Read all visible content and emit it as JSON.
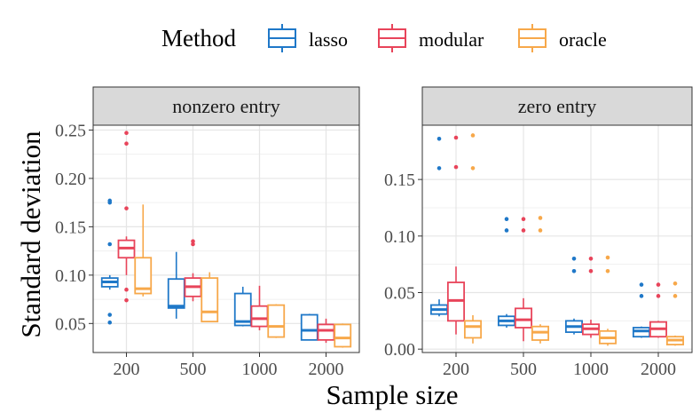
{
  "legend": {
    "title": "Method",
    "items": [
      {
        "label": "lasso",
        "color": "#1F78C8"
      },
      {
        "label": "modular",
        "color": "#E8445A"
      },
      {
        "label": "oracle",
        "color": "#F7A84A"
      }
    ]
  },
  "axes": {
    "xlabel": "Sample size",
    "ylabel": "Standard deviation"
  },
  "chart_data": [
    {
      "type": "box",
      "title": "nonzero entry",
      "categories": [
        "200",
        "500",
        "1000",
        "2000"
      ],
      "ylim": [
        0.02,
        0.255
      ],
      "yticks": [
        0.05,
        0.1,
        0.15,
        0.2,
        0.25
      ],
      "ytick_labels": [
        "0.05",
        "0.10",
        "0.15",
        "0.20",
        "0.25"
      ],
      "series": [
        {
          "name": "lasso",
          "boxes": [
            {
              "min": 0.085,
              "q1": 0.088,
              "median": 0.093,
              "q3": 0.097,
              "max": 0.1,
              "outliers": [
                0.177,
                0.175,
                0.132,
                0.059,
                0.051
              ]
            },
            {
              "min": 0.055,
              "q1": 0.066,
              "median": 0.068,
              "q3": 0.096,
              "max": 0.124,
              "outliers": []
            },
            {
              "min": 0.047,
              "q1": 0.048,
              "median": 0.052,
              "q3": 0.081,
              "max": 0.088,
              "outliers": []
            },
            {
              "min": 0.033,
              "q1": 0.033,
              "median": 0.043,
              "q3": 0.059,
              "max": 0.06,
              "outliers": []
            }
          ]
        },
        {
          "name": "modular",
          "boxes": [
            {
              "min": 0.1,
              "q1": 0.118,
              "median": 0.128,
              "q3": 0.136,
              "max": 0.14,
              "outliers": [
                0.247,
                0.236,
                0.169,
                0.085,
                0.074
              ]
            },
            {
              "min": 0.073,
              "q1": 0.078,
              "median": 0.088,
              "q3": 0.097,
              "max": 0.102,
              "outliers": [
                0.135,
                0.132
              ]
            },
            {
              "min": 0.043,
              "q1": 0.047,
              "median": 0.055,
              "q3": 0.068,
              "max": 0.089,
              "outliers": []
            },
            {
              "min": 0.03,
              "q1": 0.033,
              "median": 0.043,
              "q3": 0.049,
              "max": 0.055,
              "outliers": []
            }
          ]
        },
        {
          "name": "oracle",
          "boxes": [
            {
              "min": 0.078,
              "q1": 0.081,
              "median": 0.086,
              "q3": 0.118,
              "max": 0.173,
              "outliers": []
            },
            {
              "min": 0.052,
              "q1": 0.052,
              "median": 0.062,
              "q3": 0.097,
              "max": 0.103,
              "outliers": []
            },
            {
              "min": 0.035,
              "q1": 0.036,
              "median": 0.047,
              "q3": 0.069,
              "max": 0.07,
              "outliers": []
            },
            {
              "min": 0.025,
              "q1": 0.026,
              "median": 0.035,
              "q3": 0.049,
              "max": 0.05,
              "outliers": []
            }
          ]
        }
      ]
    },
    {
      "type": "box",
      "title": "zero entry",
      "categories": [
        "200",
        "500",
        "1000",
        "2000"
      ],
      "ylim": [
        -0.003,
        0.198
      ],
      "yticks": [
        0.0,
        0.05,
        0.1,
        0.15
      ],
      "ytick_labels": [
        "0.00",
        "0.05",
        "0.10",
        "0.15"
      ],
      "series": [
        {
          "name": "lasso",
          "boxes": [
            {
              "min": 0.029,
              "q1": 0.031,
              "median": 0.035,
              "q3": 0.039,
              "max": 0.044,
              "outliers": [
                0.186,
                0.16
              ]
            },
            {
              "min": 0.019,
              "q1": 0.021,
              "median": 0.025,
              "q3": 0.029,
              "max": 0.031,
              "outliers": [
                0.115,
                0.105
              ]
            },
            {
              "min": 0.013,
              "q1": 0.015,
              "median": 0.02,
              "q3": 0.025,
              "max": 0.027,
              "outliers": [
                0.08,
                0.069
              ]
            },
            {
              "min": 0.01,
              "q1": 0.011,
              "median": 0.016,
              "q3": 0.019,
              "max": 0.02,
              "outliers": [
                0.057,
                0.047
              ]
            }
          ]
        },
        {
          "name": "modular",
          "boxes": [
            {
              "min": 0.013,
              "q1": 0.025,
              "median": 0.043,
              "q3": 0.059,
              "max": 0.073,
              "outliers": [
                0.187,
                0.161
              ]
            },
            {
              "min": 0.007,
              "q1": 0.019,
              "median": 0.026,
              "q3": 0.036,
              "max": 0.045,
              "outliers": [
                0.115,
                0.105
              ]
            },
            {
              "min": 0.01,
              "q1": 0.013,
              "median": 0.018,
              "q3": 0.022,
              "max": 0.026,
              "outliers": [
                0.08,
                0.069
              ]
            },
            {
              "min": 0.01,
              "q1": 0.011,
              "median": 0.018,
              "q3": 0.024,
              "max": 0.025,
              "outliers": [
                0.057,
                0.047
              ]
            }
          ]
        },
        {
          "name": "oracle",
          "boxes": [
            {
              "min": 0.005,
              "q1": 0.01,
              "median": 0.02,
              "q3": 0.025,
              "max": 0.03,
              "outliers": [
                0.189,
                0.16
              ]
            },
            {
              "min": 0.005,
              "q1": 0.008,
              "median": 0.015,
              "q3": 0.02,
              "max": 0.022,
              "outliers": [
                0.116,
                0.105
              ]
            },
            {
              "min": 0.003,
              "q1": 0.005,
              "median": 0.01,
              "q3": 0.016,
              "max": 0.018,
              "outliers": [
                0.081,
                0.069
              ]
            },
            {
              "min": 0.003,
              "q1": 0.004,
              "median": 0.008,
              "q3": 0.011,
              "max": 0.012,
              "outliers": [
                0.058,
                0.047
              ]
            }
          ]
        }
      ]
    }
  ]
}
